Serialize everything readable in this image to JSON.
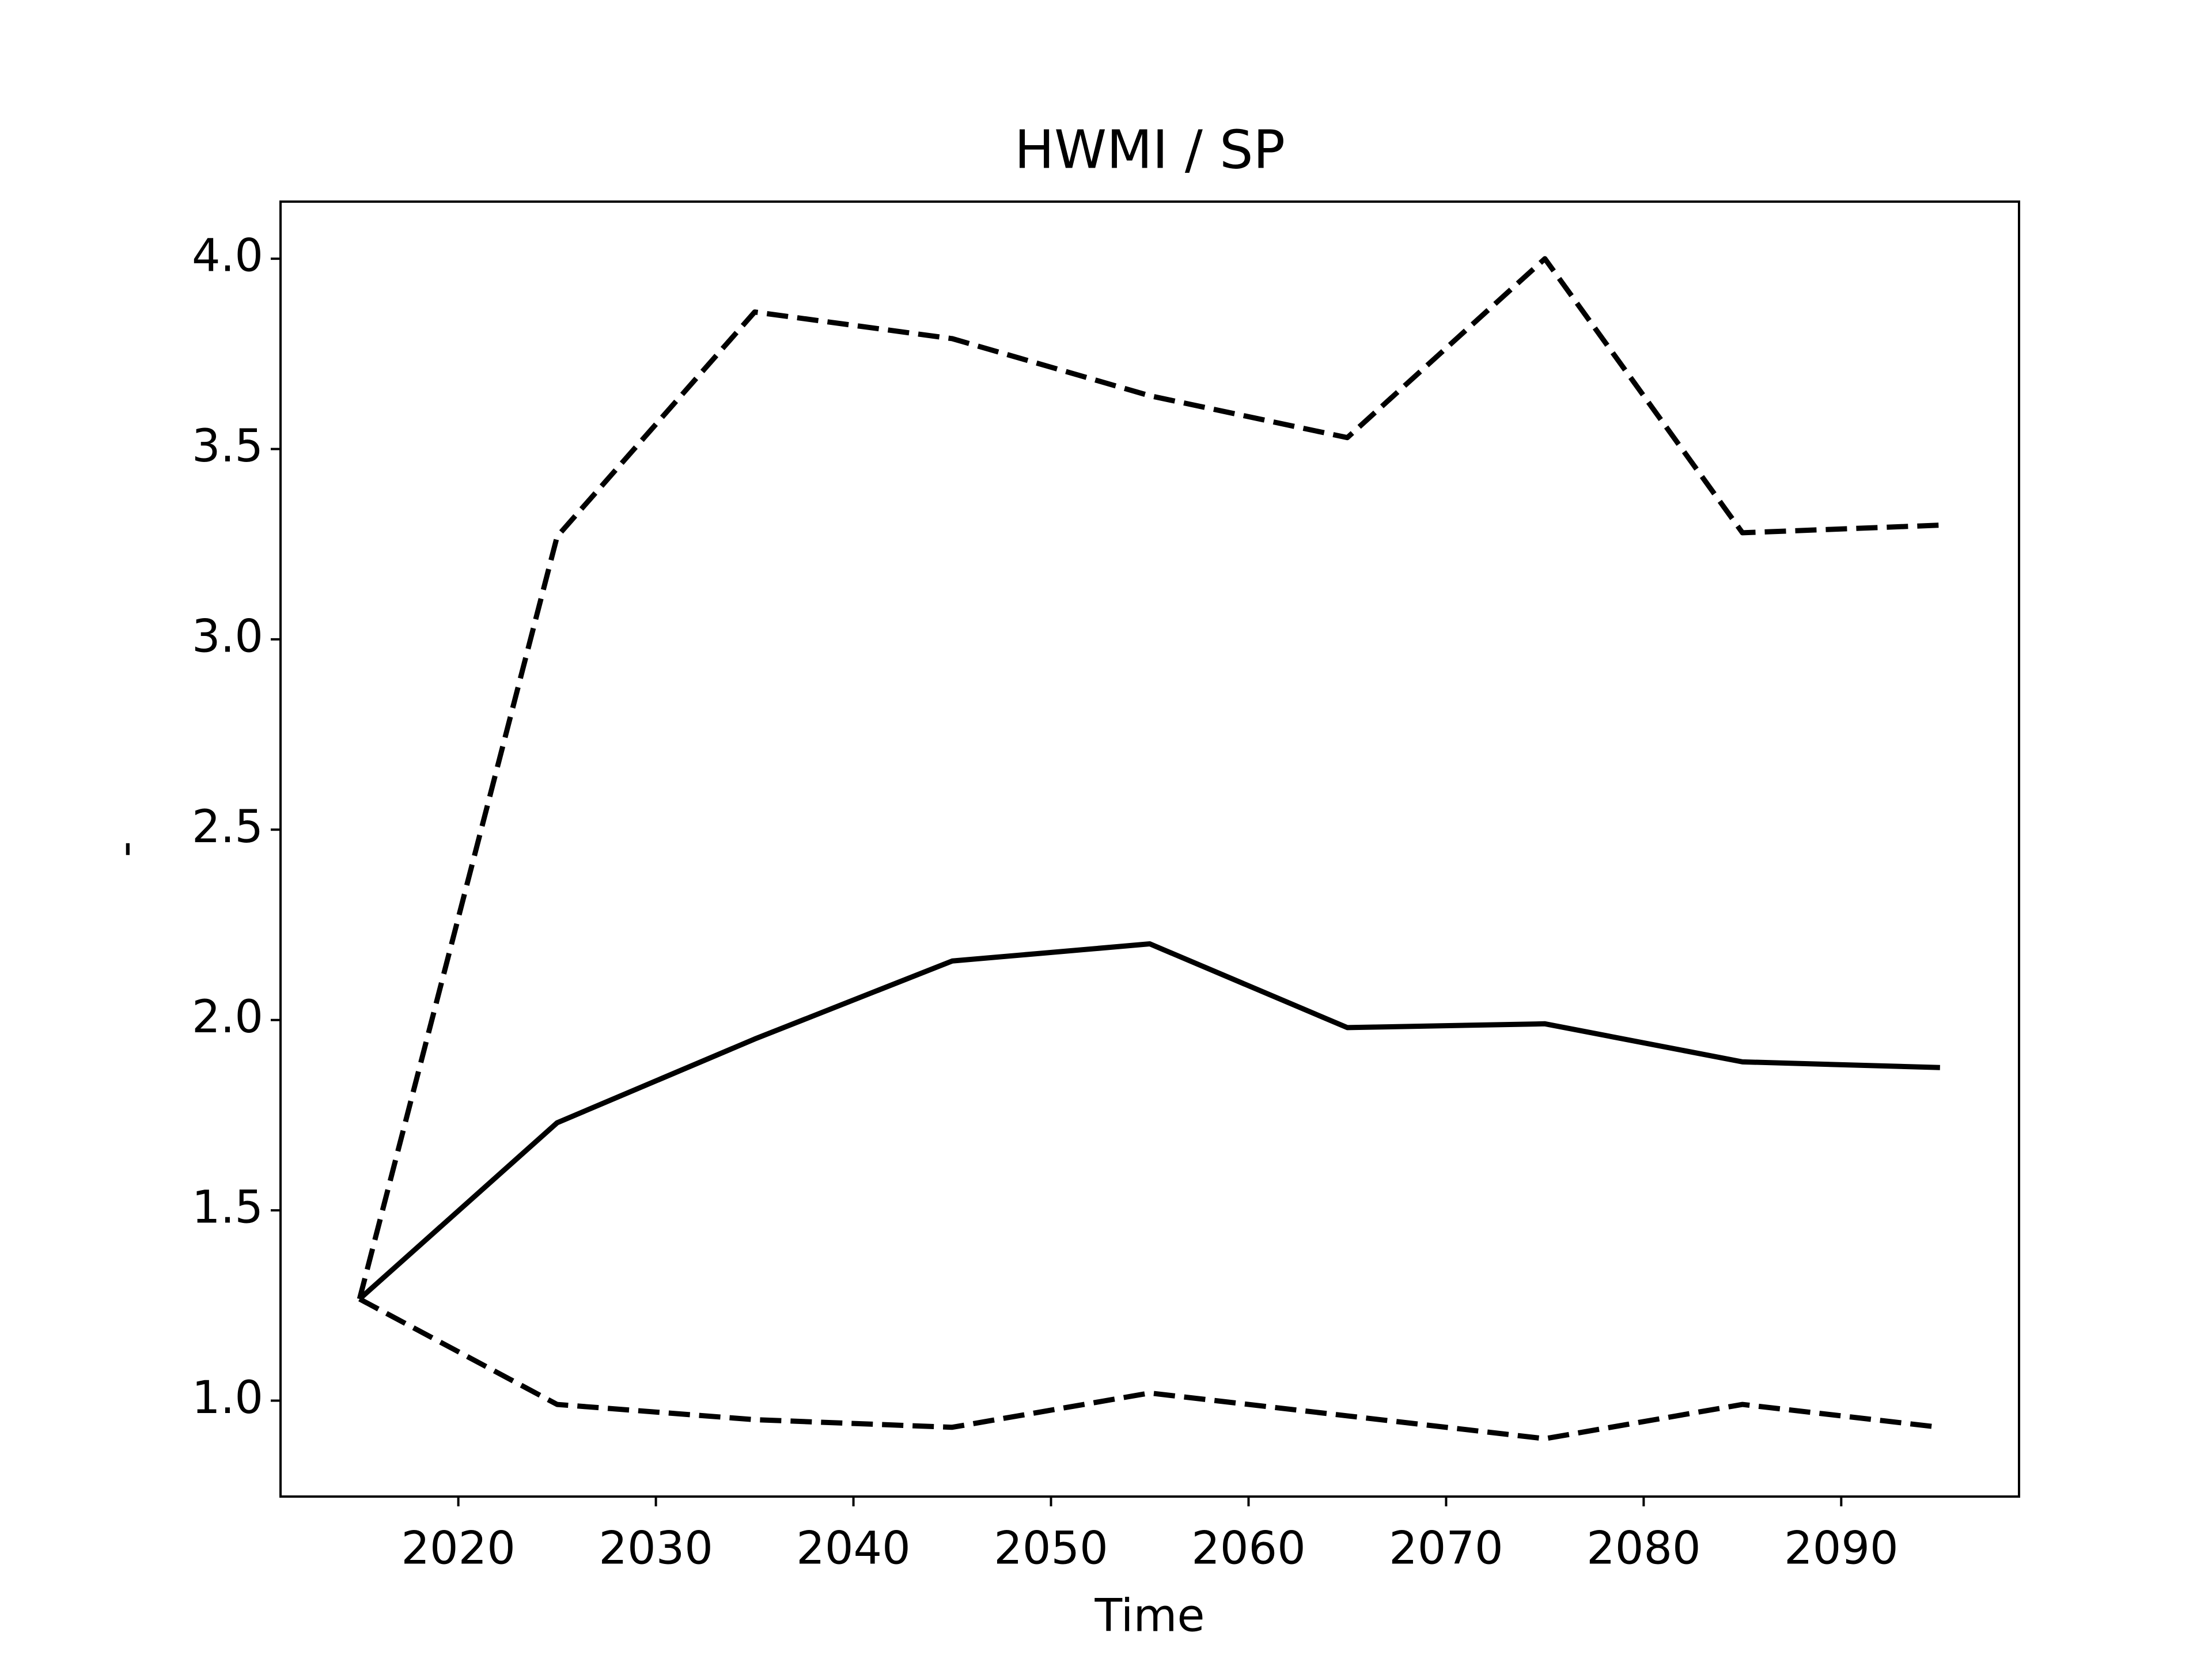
{
  "chart_data": {
    "type": "line",
    "title": "HWMI / SP",
    "x_label": "Time",
    "y_label": "-",
    "x": [
      2015,
      2025,
      2035,
      2045,
      2055,
      2065,
      2075,
      2085,
      2095
    ],
    "series": [
      {
        "color": "#000000",
        "linestyle": "solid",
        "values": [
          1.267,
          1.73,
          1.95,
          2.155,
          2.2,
          1.98,
          1.99,
          1.89,
          1.875
        ]
      },
      {
        "color": "#000000",
        "linestyle": "dashed",
        "values": [
          1.267,
          3.27,
          3.86,
          3.79,
          3.64,
          3.53,
          4.0,
          3.28,
          3.3
        ]
      },
      {
        "color": "#000000",
        "linestyle": "dashed",
        "values": [
          1.267,
          0.99,
          0.95,
          0.93,
          1.02,
          0.96,
          0.9,
          0.99,
          0.93
        ]
      }
    ],
    "xlim": [
      2011,
      2099
    ],
    "xticks": [
      2020,
      2030,
      2040,
      2050,
      2060,
      2070,
      2080,
      2090
    ],
    "ylim": [
      0.748,
      4.15
    ],
    "yticks": [
      {
        "value": 1,
        "label": "1.0"
      },
      1.5,
      {
        "value": 2,
        "label": "2.0"
      },
      2.5,
      {
        "value": 3,
        "label": "3.0"
      },
      3.5,
      {
        "value": 4,
        "label": "4.0"
      }
    ],
    "grid": false
  }
}
